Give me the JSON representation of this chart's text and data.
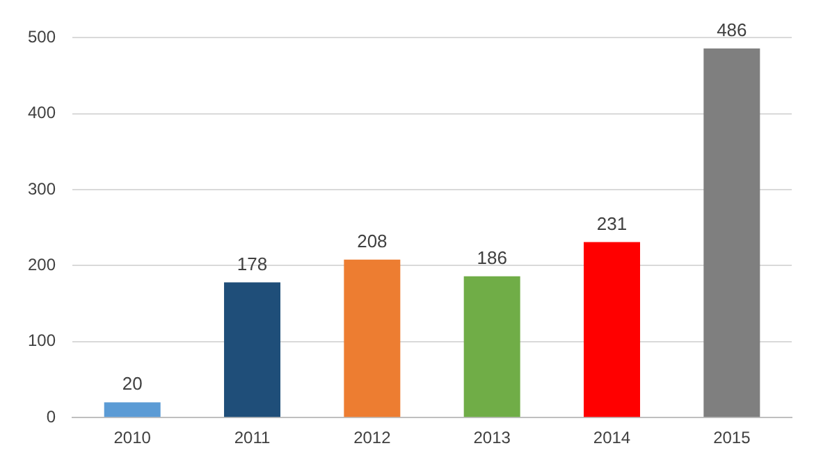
{
  "chart_data": {
    "type": "bar",
    "categories": [
      "2010",
      "2011",
      "2012",
      "2013",
      "2014",
      "2015"
    ],
    "values": [
      20,
      178,
      208,
      186,
      231,
      486
    ],
    "colors": [
      "#5b9bd5",
      "#1f4e79",
      "#ed7d31",
      "#70ad47",
      "#ff0000",
      "#7f7f7f"
    ],
    "ylim": [
      0,
      500
    ],
    "yticks": [
      0,
      100,
      200,
      300,
      400,
      500
    ],
    "grid": "y",
    "data_labels": true,
    "legend": false
  }
}
